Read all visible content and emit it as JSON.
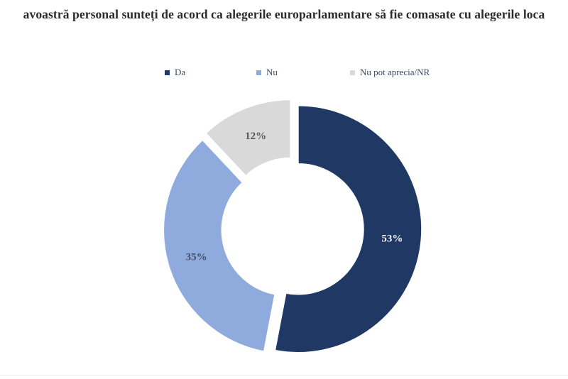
{
  "page": {
    "background": "#ffffff",
    "divider_color": "#ebebeb"
  },
  "chart_data": {
    "type": "pie",
    "subtype": "donut",
    "title": "avoastră personal sunteți de acord ca alegerile europarlamentare să fie comasate cu alegerile loca",
    "title_color": "#2b2b2b",
    "legend_position": "top",
    "unit": "%",
    "series": [
      {
        "name": "Da",
        "value": 53,
        "display_label": "53%",
        "color": "#1F3864",
        "label_color": "#F2F2F2"
      },
      {
        "name": "Nu",
        "value": 35,
        "display_label": "35%",
        "color": "#8FAADC",
        "label_color": "#44506B"
      },
      {
        "name": "Nu pot aprecia/NR",
        "value": 12,
        "display_label": "12%",
        "color": "#D9D9D9",
        "label_color": "#595959"
      }
    ]
  }
}
